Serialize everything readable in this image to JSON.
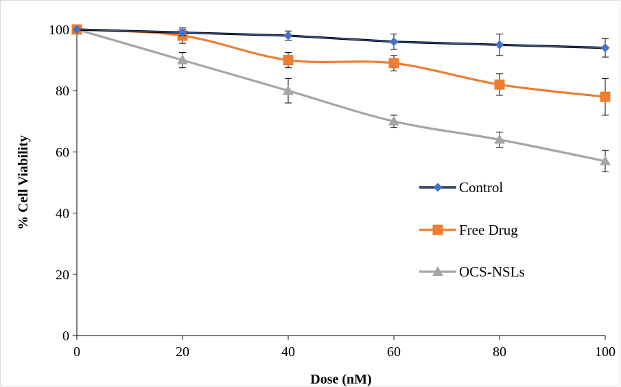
{
  "chart_data": {
    "type": "line",
    "title": "",
    "xlabel": "Dose (nM)",
    "ylabel": "% Cell Viability",
    "x": [
      0,
      20,
      40,
      60,
      80,
      100
    ],
    "x_ticks": [
      "0",
      "20",
      "40",
      "60",
      "80",
      "100"
    ],
    "y_ticks": [
      "0",
      "20",
      "40",
      "60",
      "80",
      "100"
    ],
    "xlim": [
      0,
      100
    ],
    "ylim": [
      0,
      100
    ],
    "grid": false,
    "legend_position": "right",
    "series": [
      {
        "name": "Control",
        "color": "#4472C4",
        "line_color": "#000000",
        "marker": "diamond",
        "smooth": false,
        "values": [
          100,
          99,
          98,
          96,
          95,
          94
        ],
        "errors": [
          0,
          1,
          1.5,
          2.5,
          3.5,
          3
        ]
      },
      {
        "name": "Free Drug",
        "color": "#ED7D31",
        "line_color": "#ED7D31",
        "marker": "square",
        "smooth": true,
        "values": [
          100,
          98,
          90,
          89,
          82,
          78
        ],
        "errors": [
          0,
          2.5,
          2.5,
          2.5,
          3.5,
          6
        ]
      },
      {
        "name": "OCS-NSLs",
        "color": "#A5A5A5",
        "line_color": "#A5A5A5",
        "marker": "triangle",
        "smooth": true,
        "values": [
          100,
          90,
          80,
          70,
          64,
          57
        ],
        "errors": [
          0,
          2.5,
          4,
          2,
          2.5,
          3.5
        ]
      }
    ]
  }
}
